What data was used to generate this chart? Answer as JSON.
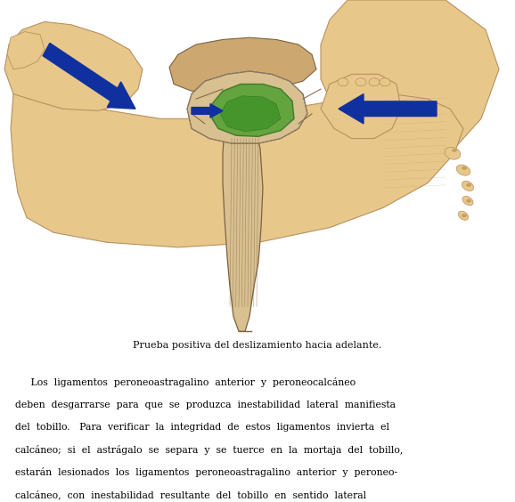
{
  "background_color": "#ffffff",
  "fig_width": 5.78,
  "fig_height": 5.64,
  "dpi": 100,
  "caption": "Prueba positiva del deslizamiento hacia adelante.",
  "caption_fontsize": 8.0,
  "caption_color": "#111111",
  "paragraph_lines": [
    "     Los  ligamentos  peroneoastragalino  anterior  y  peroneocalcáneo",
    "deben  desgarrarse  para  que  se  produzca  inestabilidad  lateral  manifiesta",
    "del  tobillo.   Para  verificar  la  integridad  de  estos  ligamentos  invierta  el",
    "calcáneo;  si  el  astrágalo  se  separa  y  se  tuerce  en  la  mortaja  del  tobillo,",
    "estarán  lesionados  los  ligamentos  peroneoastragalino  anterior  y  peroneo-",
    "calcáneo,  con  inestabilidad  resultante  del  tobillo  en  sentido  lateral"
  ],
  "paragraph_fontsize": 7.8,
  "skin_color": "#e8c88a",
  "skin_edge": "#b89060",
  "bone_color": "#d8c090",
  "bone_edge": "#806040",
  "green_fill": "#50a030",
  "green_edge": "#307020",
  "arrow_color": "#1030a0",
  "line_color": "#404040"
}
